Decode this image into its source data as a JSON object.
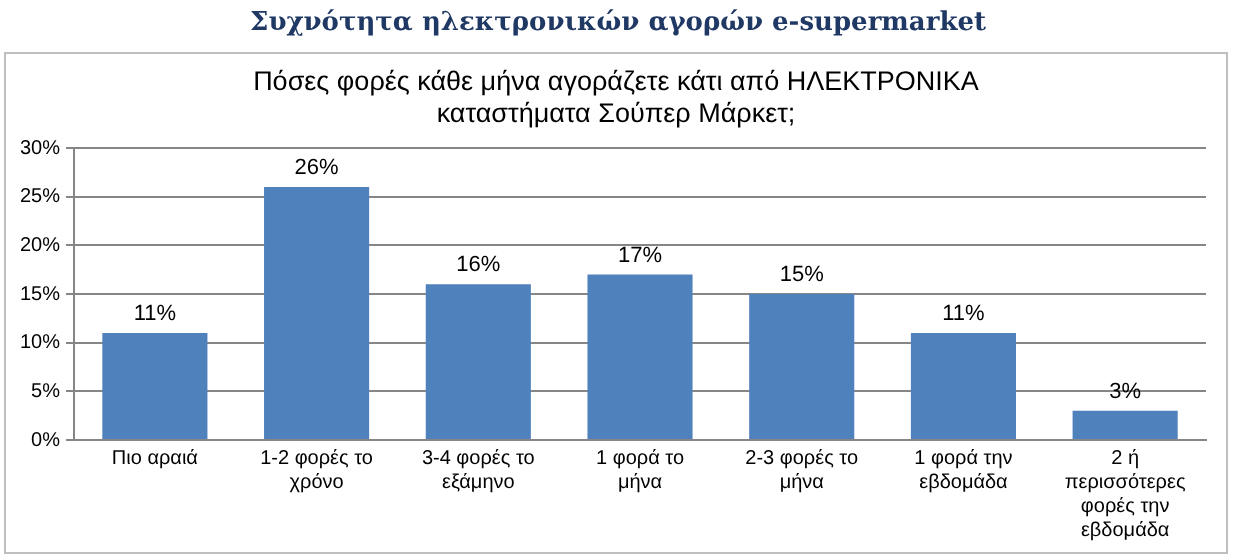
{
  "chart_data": {
    "type": "bar",
    "title": "Συχνότητα ηλεκτρονικών αγορών e-supermarket",
    "subtitle": "Πόσες φορές κάθε μήνα αγοράζετε κάτι  από ΗΛΕΚΤΡΟΝΙΚΑ  καταστήματα Σούπερ Μάρκετ;",
    "categories": [
      "Πιο αραιά",
      "1-2 φορές το χρόνο",
      "3-4 φορές το εξάμηνο",
      "1 φορά το μήνα",
      "2-3 φορές το μήνα",
      "1 φορά την εβδομάδα",
      "2 ή περισσότερες φορές την εβδομάδα"
    ],
    "values": [
      11,
      26,
      16,
      17,
      15,
      11,
      3
    ],
    "value_labels": [
      "11%",
      "26%",
      "16%",
      "17%",
      "15%",
      "11%",
      "3%"
    ],
    "color": "#4f81bd",
    "ylim": [
      0,
      30
    ],
    "yticks": [
      {
        "value": 0,
        "label": "0%"
      },
      {
        "value": 5,
        "label": "5%"
      },
      {
        "value": 10,
        "label": "10%"
      },
      {
        "value": 15,
        "label": "15%"
      },
      {
        "value": 20,
        "label": "20%"
      },
      {
        "value": 25,
        "label": "25%"
      },
      {
        "value": 30,
        "label": "30%"
      }
    ],
    "grid": "y"
  }
}
